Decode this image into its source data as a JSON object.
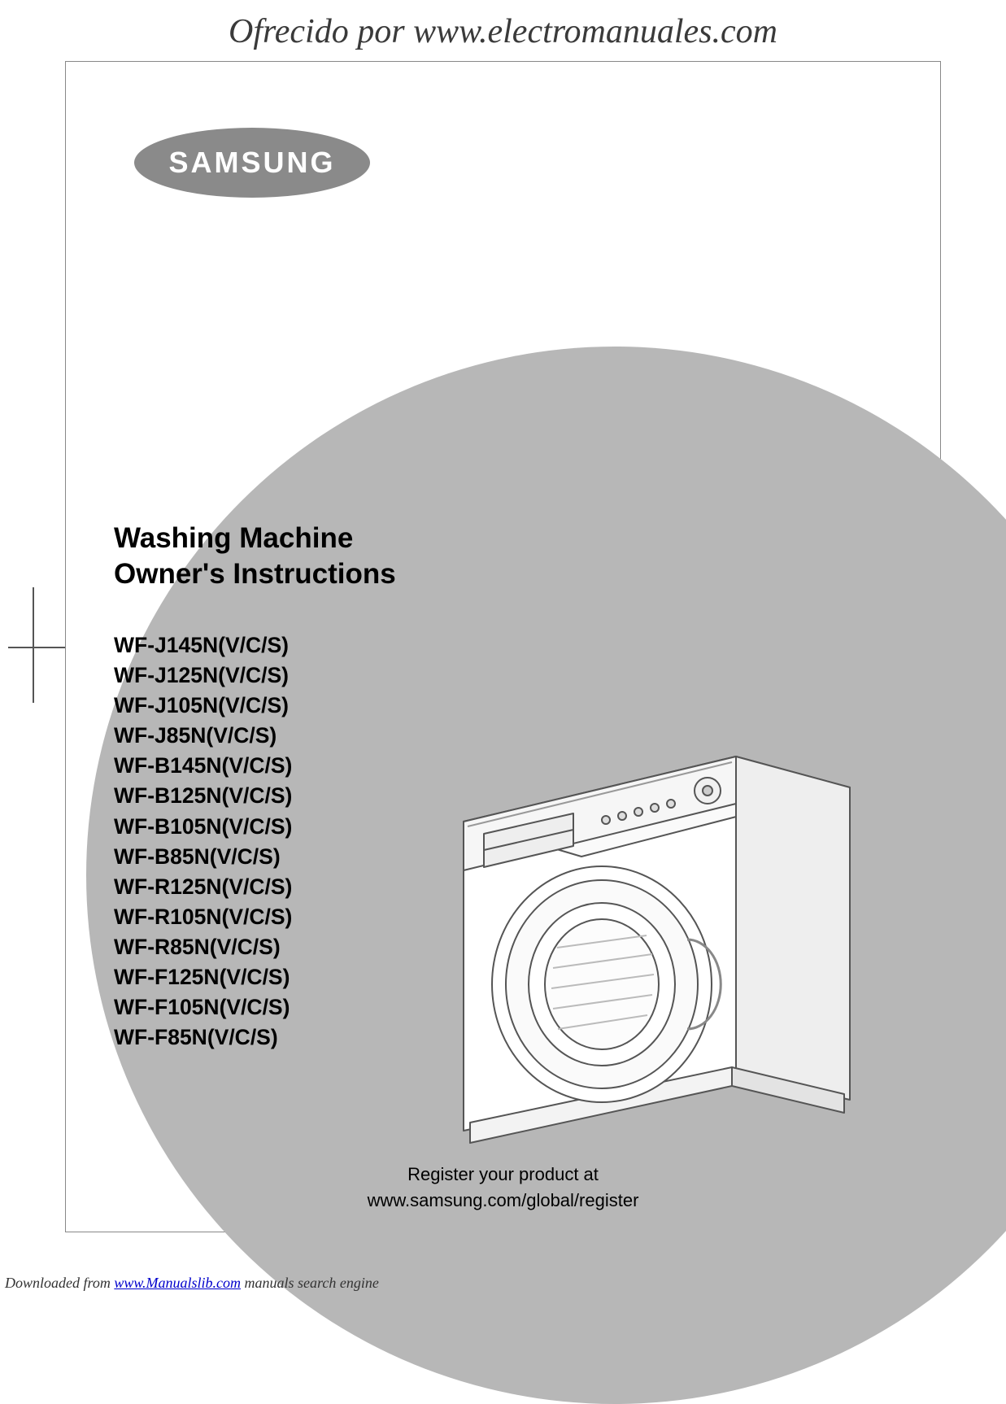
{
  "watermark": "Ofrecido por www.electromanuales.com",
  "brand": "SAMSUNG",
  "title_line1": "Washing Machine",
  "title_line2": "Owner's Instructions",
  "models": [
    "WF-J145N(V/C/S)",
    "WF-J125N(V/C/S)",
    "WF-J105N(V/C/S)",
    "WF-J85N(V/C/S)",
    "WF-B145N(V/C/S)",
    "WF-B125N(V/C/S)",
    "WF-B105N(V/C/S)",
    "WF-B85N(V/C/S)",
    "WF-R125N(V/C/S)",
    "WF-R105N(V/C/S)",
    "WF-R85N(V/C/S)",
    "WF-F125N(V/C/S)",
    "WF-F105N(V/C/S)",
    "WF-F85N(V/C/S)"
  ],
  "register_line1": "Register your product at",
  "register_line2": "www.samsung.com/global/register",
  "footer_prefix": "Downloaded from ",
  "footer_link": "www.Manualslib.com",
  "footer_suffix": " manuals search engine",
  "colors": {
    "bg_shape": "#b7b7b7",
    "logo_fill": "#8a8a8a",
    "washer_stroke": "#555555",
    "washer_fill": "#ffffff"
  }
}
